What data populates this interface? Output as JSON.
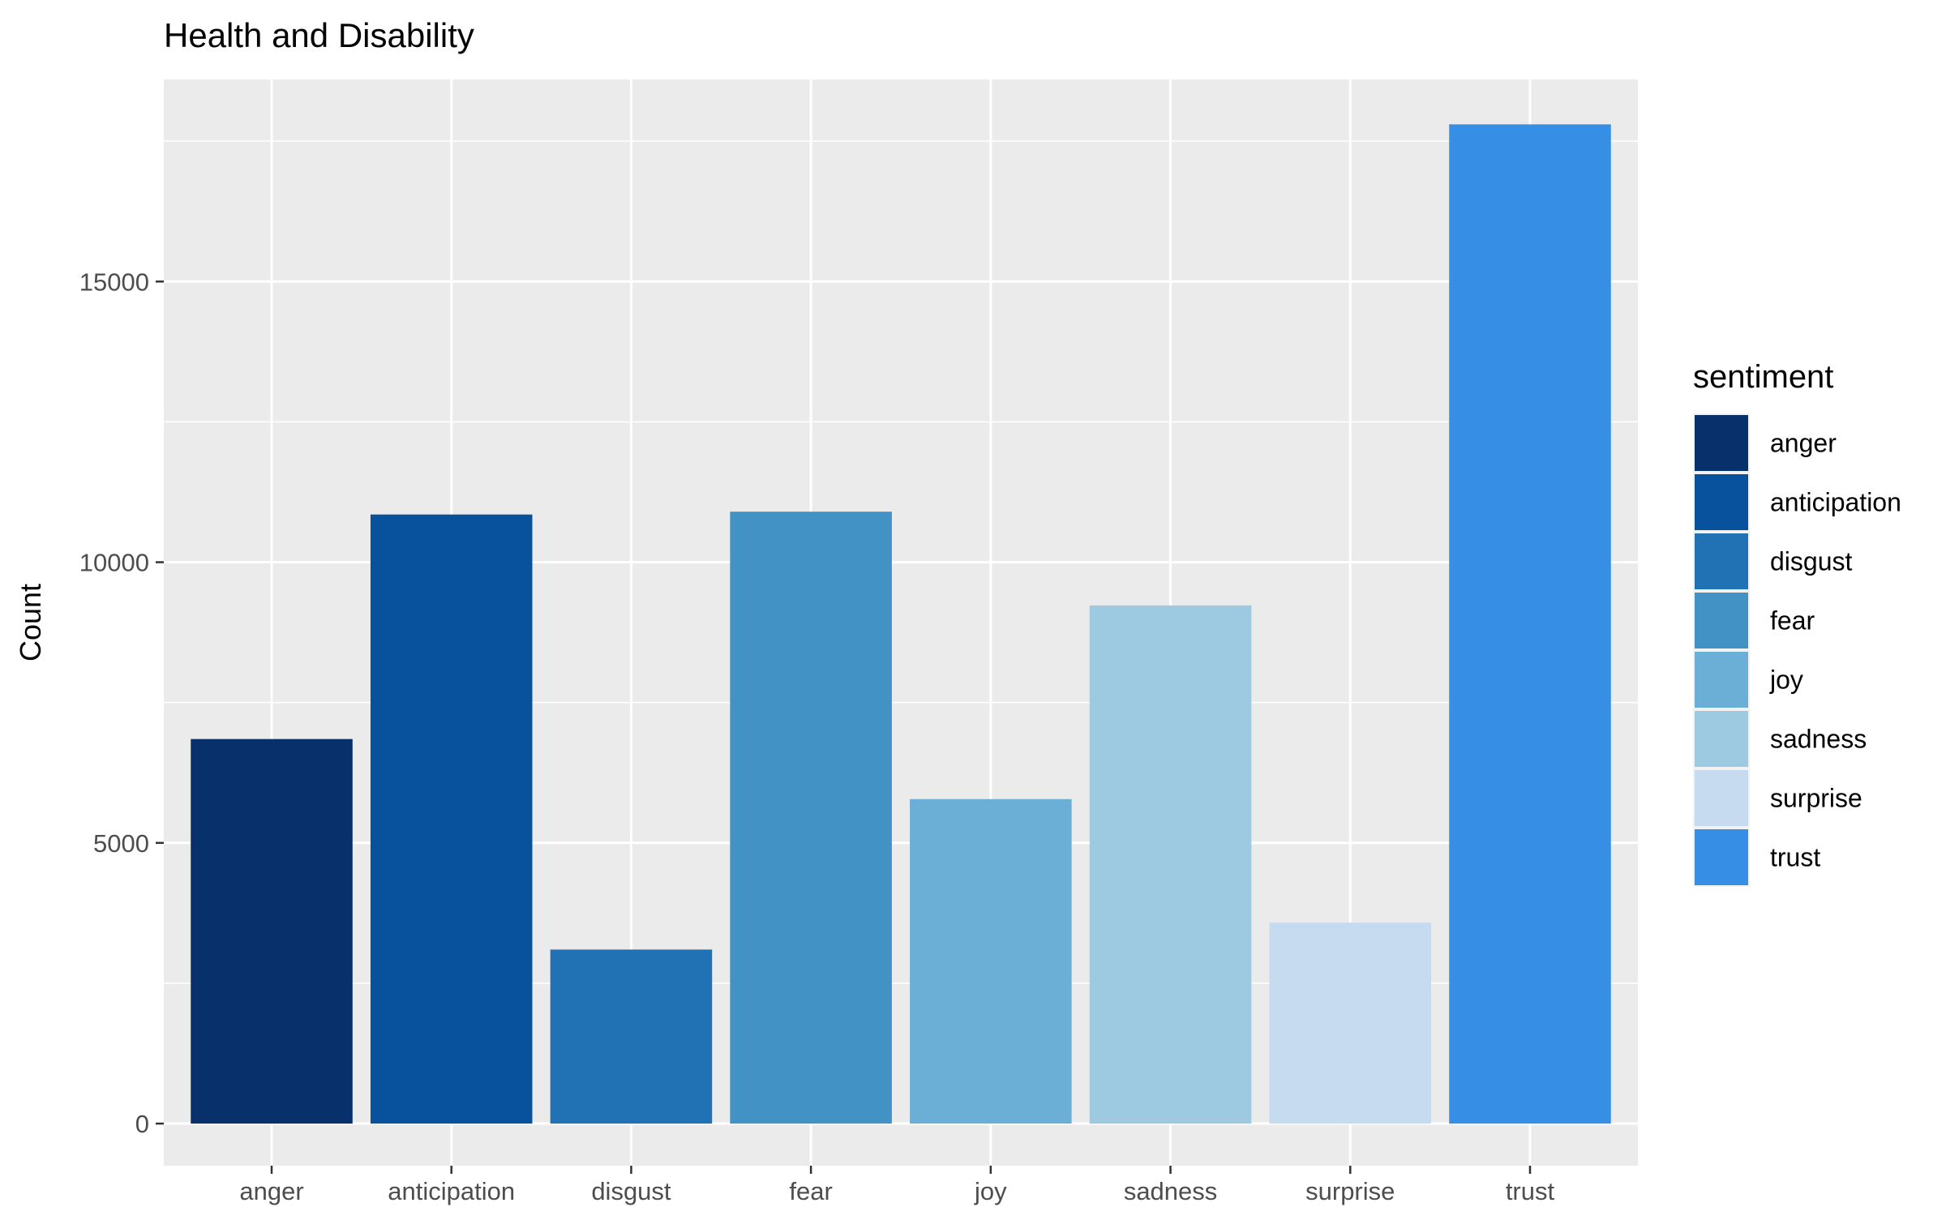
{
  "chart_data": {
    "type": "bar",
    "title": "Health and Disability",
    "xlabel": "",
    "ylabel": "Count",
    "categories": [
      "anger",
      "anticipation",
      "disgust",
      "fear",
      "joy",
      "sadness",
      "surprise",
      "trust"
    ],
    "values": [
      6850,
      10850,
      3100,
      10900,
      5780,
      9230,
      3580,
      17800
    ],
    "colors": [
      "#08306b",
      "#08519c",
      "#2171b5",
      "#4292c6",
      "#6baed6",
      "#9ecae1",
      "#c6dbef",
      "#368fe5"
    ],
    "ylim": [
      -750,
      18600
    ],
    "yticks": [
      0,
      5000,
      10000,
      15000
    ],
    "ytick_labels": [
      "0",
      "5000",
      "10000",
      "15000"
    ],
    "grid": true,
    "legend": {
      "title": "sentiment",
      "position": "right",
      "entries": [
        "anger",
        "anticipation",
        "disgust",
        "fear",
        "joy",
        "sadness",
        "surprise",
        "trust"
      ]
    }
  }
}
